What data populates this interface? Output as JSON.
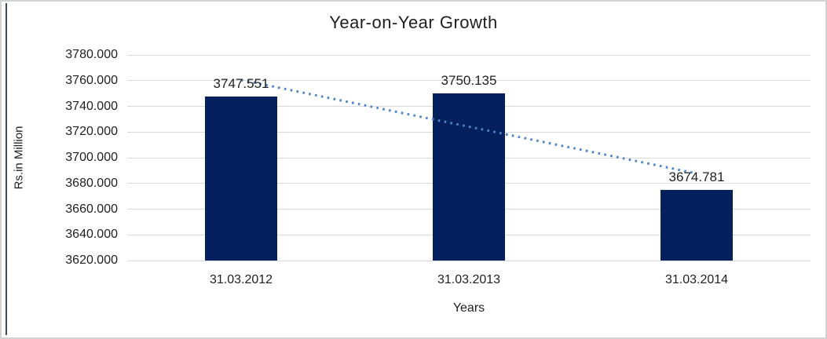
{
  "frame": {
    "border_color": "#D2D2D2",
    "accent_color": "#3D4A61"
  },
  "chart_data": {
    "type": "bar",
    "title": "Year-on-Year Growth",
    "categories": [
      "31.03.2012",
      "31.03.2013",
      "31.03.2014"
    ],
    "values": [
      3747.551,
      3750.135,
      3674.781
    ],
    "data_labels": [
      "3747.551",
      "3750.135",
      "3674.781"
    ],
    "xlabel": "Years",
    "ylabel": "Rs.in Million",
    "ylim": [
      3620,
      3780
    ],
    "ytick_step": 20,
    "ytick_labels": [
      "3780.000",
      "3760.000",
      "3740.000",
      "3720.000",
      "3700.000",
      "3680.000",
      "3660.000",
      "3640.000",
      "3620.000"
    ],
    "grid": "horizontal",
    "legend": "none",
    "bar_color": "#04215E",
    "gridline_color": "#D9D9D9",
    "text_color": "#1F1F1F",
    "trendline": {
      "type": "linear",
      "style": "dotted",
      "color": "#4C86C8"
    }
  }
}
